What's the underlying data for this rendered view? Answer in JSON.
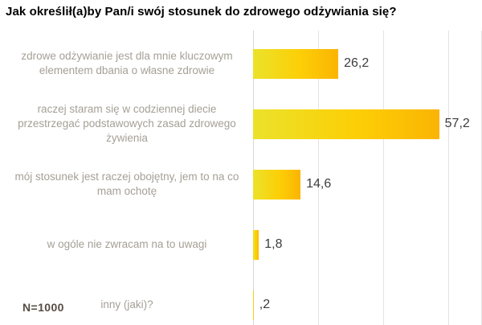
{
  "title": "Jak określił(a)by Pan/i swój stosunek do zdrowego odżywiania się?",
  "footnote": "N=1000",
  "chart_data": {
    "type": "bar",
    "orientation": "horizontal",
    "title": "Jak określił(a)by Pan/i swój stosunek do zdrowego odżywiania się?",
    "categories": [
      "zdrowe odżywianie jest dla mnie kluczowym elementem dbania o własne zdrowie",
      "raczej staram się w codziennej diecie przestrzegać podstawowych zasad zdrowego żywienia",
      "mój stosunek jest raczej obojętny, jem to na co mam ochotę",
      "w ogóle nie zwracam na to uwagi",
      "inny (jaki)?"
    ],
    "values": [
      26.2,
      57.2,
      14.6,
      1.8,
      0.2
    ],
    "value_labels": [
      "26,2",
      "57,2",
      "14,6",
      "1,8",
      ",2"
    ],
    "xlabel": "",
    "ylabel": "",
    "xlim": [
      0,
      70
    ],
    "gridline_values": [
      0,
      20,
      40,
      60,
      70
    ],
    "grid": true,
    "legend": "none",
    "sample_size_note": "N=1000"
  },
  "colors": {
    "background": "#ffffff",
    "title": "#000000",
    "category_label": "#a5a096",
    "value_label": "#3d3d3d",
    "footnote": "#554c43",
    "gridline": "#e4e4e4",
    "axis_line": "#d7d7d7",
    "bar_gradient_start": "#ebe22b",
    "bar_gradient_mid": "#fccf06",
    "bar_gradient_end": "#fbb404"
  }
}
